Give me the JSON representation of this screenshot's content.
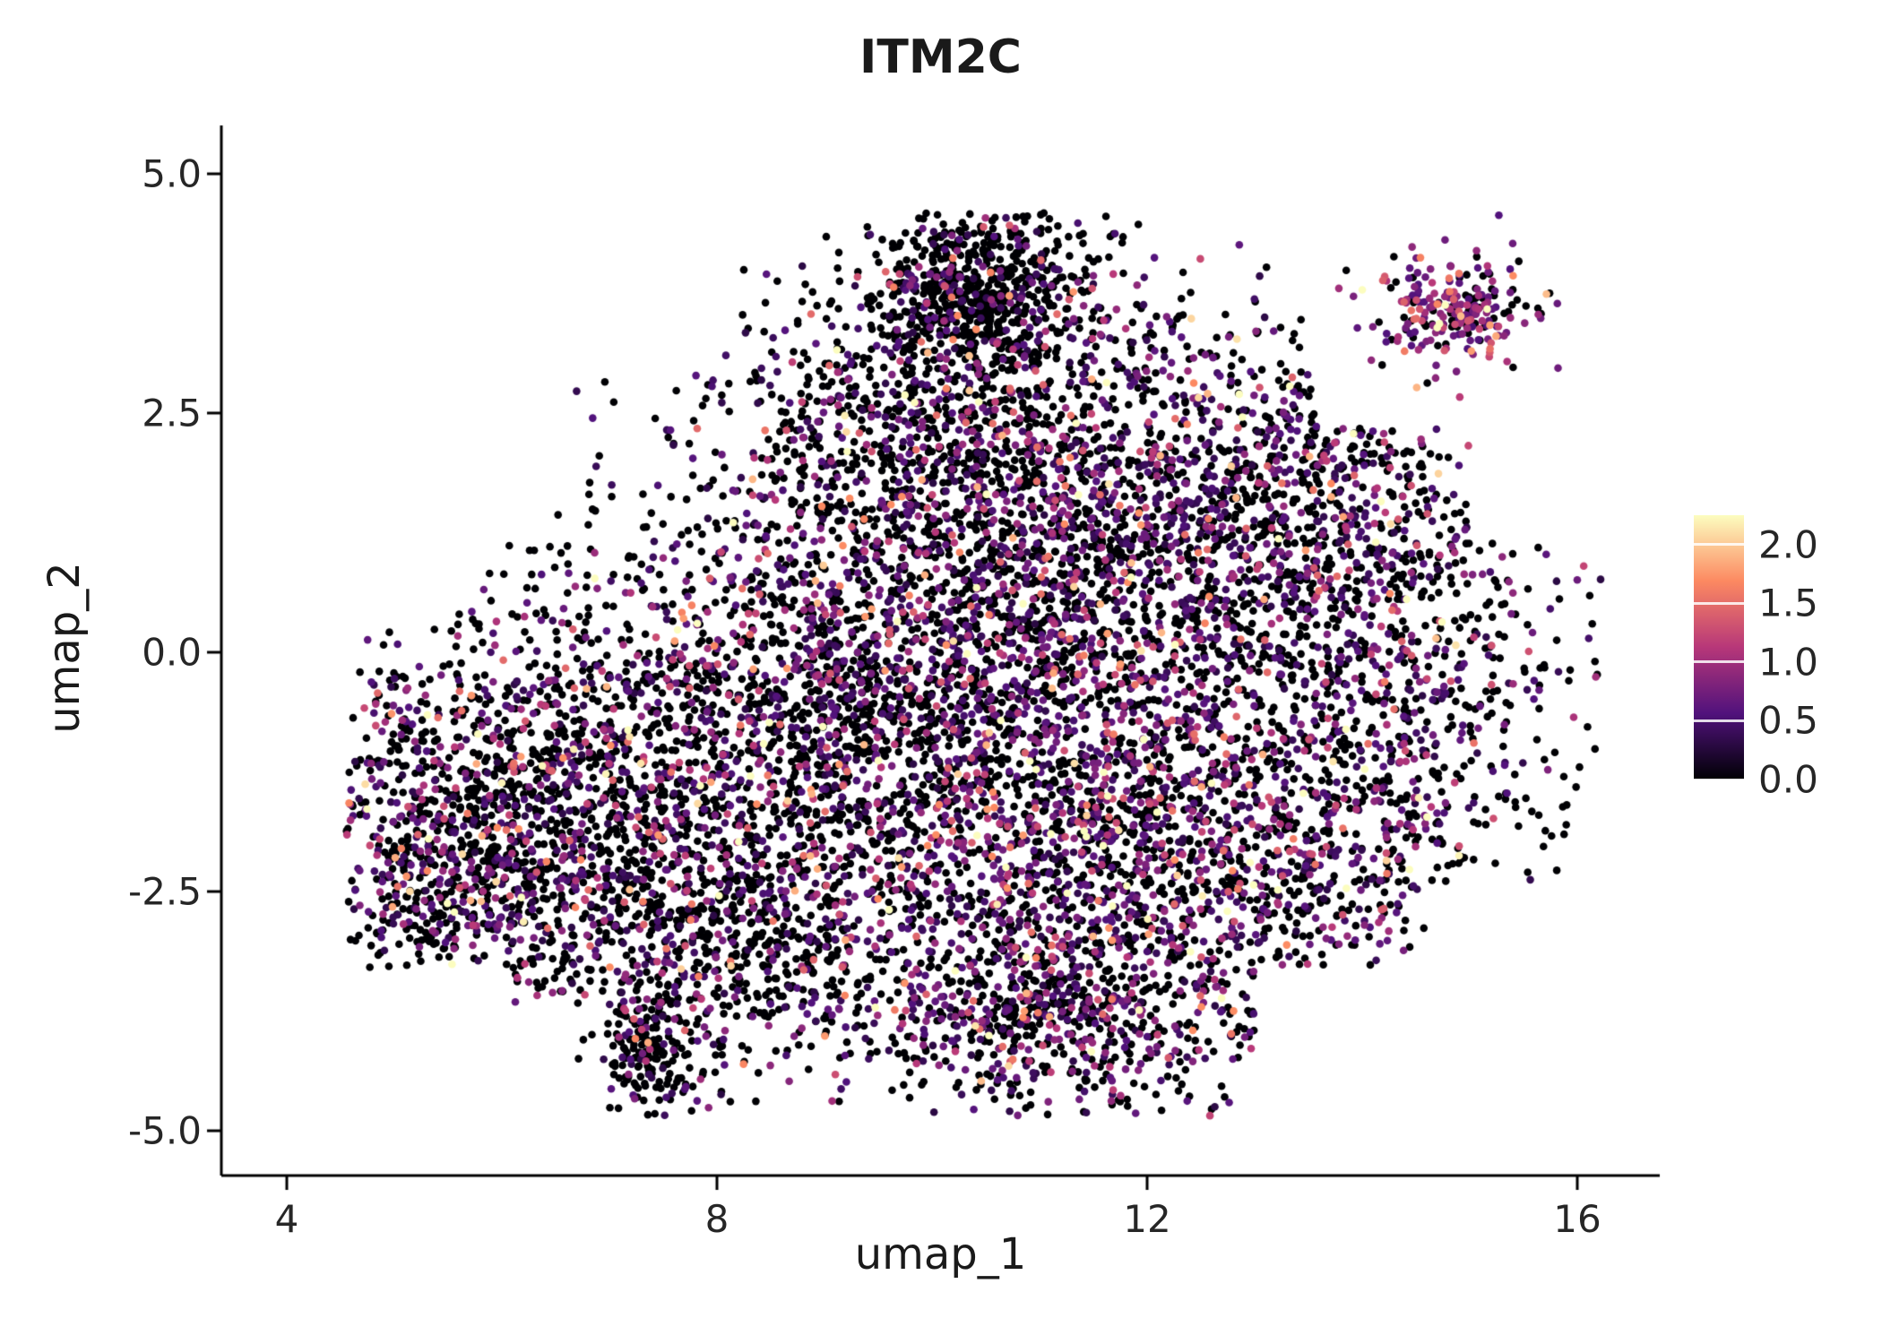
{
  "chart_data": {
    "type": "scatter",
    "title": "ITM2C",
    "xlabel": "umap_1",
    "ylabel": "umap_2",
    "x_ticks": [
      4,
      8,
      12,
      16
    ],
    "x_tick_labels": [
      "4",
      "8",
      "12",
      "16"
    ],
    "y_ticks": [
      5.0,
      2.5,
      0.0,
      -2.5,
      -5.0
    ],
    "y_tick_labels": [
      "5.0",
      "2.5",
      "0.0",
      "-2.5",
      "-5.0"
    ],
    "xlim": [
      3.4,
      16.6
    ],
    "ylim": [
      -5.5,
      5.4
    ],
    "grid": false,
    "background_color": "#ffffff",
    "axis_color": "#000000",
    "point_radius_px": 4.3,
    "n_points_total_approx": 11900,
    "expression_vmax": 2.3,
    "seed": 20240612,
    "legend": {
      "position": "right",
      "kind": "colorbar",
      "colormap": "magma",
      "vmin": 0.0,
      "vmax": 2.25,
      "tick_values": [
        2.0,
        1.5,
        1.0,
        0.5,
        0.0
      ],
      "tick_labels": [
        "2.0",
        "1.5",
        "1.0",
        "0.5",
        "0.0"
      ],
      "stops": [
        [
          0,
          "#000004"
        ],
        [
          0.25,
          "#51127c"
        ],
        [
          0.5,
          "#b73779"
        ],
        [
          0.75,
          "#fc8961"
        ],
        [
          1,
          "#fcfdbf"
        ]
      ]
    },
    "clusters": [
      {
        "name": "top-protrusion",
        "cx": 10.4,
        "cy": 3.75,
        "sx": 0.52,
        "sy": 0.48,
        "n": 700,
        "zero_frac": 0.8,
        "expr_min": 0.3,
        "expr_scale": 0.45
      },
      {
        "name": "upper-mid",
        "cx": 10.1,
        "cy": 2.3,
        "sx": 1.15,
        "sy": 0.85,
        "n": 950,
        "zero_frac": 0.62,
        "expr_min": 0.3,
        "expr_scale": 0.5
      },
      {
        "name": "upper-right",
        "cx": 12.9,
        "cy": 1.55,
        "sx": 1.3,
        "sy": 0.95,
        "n": 1250,
        "zero_frac": 0.55,
        "expr_min": 0.3,
        "expr_scale": 0.5
      },
      {
        "name": "center",
        "cx": 10.6,
        "cy": 0.3,
        "sx": 1.45,
        "sy": 1.1,
        "n": 1500,
        "zero_frac": 0.57,
        "expr_min": 0.3,
        "expr_scale": 0.5
      },
      {
        "name": "mid-bridge",
        "cx": 9.0,
        "cy": -0.7,
        "sx": 0.95,
        "sy": 0.95,
        "n": 750,
        "zero_frac": 0.62,
        "expr_min": 0.3,
        "expr_scale": 0.5
      },
      {
        "name": "right-edge",
        "cx": 14.2,
        "cy": -0.6,
        "sx": 0.85,
        "sy": 1.35,
        "n": 750,
        "zero_frac": 0.6,
        "expr_min": 0.3,
        "expr_scale": 0.45
      },
      {
        "name": "left-lobe",
        "cx": 6.6,
        "cy": -1.3,
        "sx": 1.15,
        "sy": 1.05,
        "n": 1250,
        "zero_frac": 0.62,
        "expr_min": 0.3,
        "expr_scale": 0.5
      },
      {
        "name": "far-left",
        "cx": 5.5,
        "cy": -2.3,
        "sx": 0.6,
        "sy": 0.85,
        "n": 600,
        "zero_frac": 0.6,
        "expr_min": 0.3,
        "expr_scale": 0.5
      },
      {
        "name": "left-bottom",
        "cx": 8.0,
        "cy": -2.9,
        "sx": 1.0,
        "sy": 0.8,
        "n": 800,
        "zero_frac": 0.66,
        "expr_min": 0.3,
        "expr_scale": 0.45
      },
      {
        "name": "bottom-right-dense",
        "cx": 11.7,
        "cy": -2.3,
        "sx": 1.45,
        "sy": 1.1,
        "n": 1900,
        "zero_frac": 0.5,
        "expr_min": 0.3,
        "expr_scale": 0.55
      },
      {
        "name": "bottom-protrusion",
        "cx": 10.9,
        "cy": -3.9,
        "sx": 0.9,
        "sy": 0.45,
        "n": 450,
        "zero_frac": 0.58,
        "expr_min": 0.3,
        "expr_scale": 0.5
      },
      {
        "name": "bottom-tail",
        "cx": 7.35,
        "cy": -4.25,
        "sx": 0.22,
        "sy": 0.34,
        "n": 160,
        "zero_frac": 0.78,
        "expr_min": 0.3,
        "expr_scale": 0.4
      },
      {
        "name": "satellite",
        "cx": 14.85,
        "cy": 3.6,
        "sx": 0.36,
        "sy": 0.29,
        "n": 240,
        "zero_frac": 0.28,
        "expr_min": 0.5,
        "expr_scale": 0.5
      },
      {
        "name": "outskirts",
        "cx": 10.7,
        "cy": -0.4,
        "sx": 2.7,
        "sy": 2.1,
        "n": 600,
        "zero_frac": 0.7,
        "expr_min": 0.3,
        "expr_scale": 0.4
      }
    ]
  }
}
